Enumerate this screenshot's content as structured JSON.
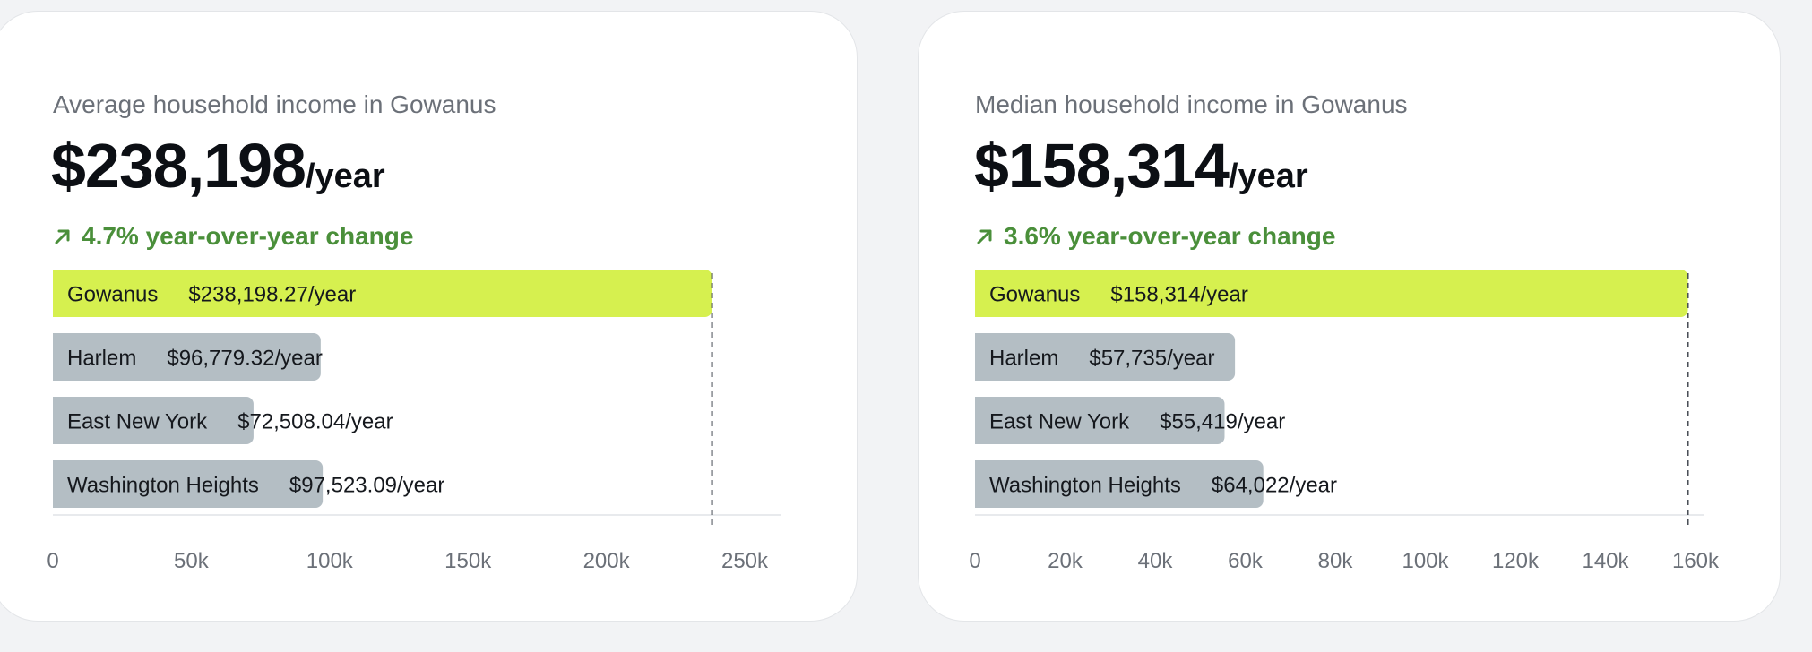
{
  "colors": {
    "highlight_bar": "#d6f04f",
    "other_bar": "#b4bec4",
    "change_positive": "#4a8f3a",
    "axis_text": "#6b7078"
  },
  "cards": [
    {
      "subtitle": "Average household income in Gowanus",
      "value": "$238,198",
      "unit": "/year",
      "change_icon": "arrow-up-right-icon",
      "change_text": "4.7% year-over-year change"
    },
    {
      "subtitle": "Median household income in Gowanus",
      "value": "$158,314",
      "unit": "/year",
      "change_icon": "arrow-up-right-icon",
      "change_text": "3.6% year-over-year change"
    }
  ],
  "chart_data": [
    {
      "type": "bar",
      "orientation": "horizontal",
      "categories": [
        "Gowanus",
        "Harlem",
        "East New York",
        "Washington Heights"
      ],
      "values": [
        238198.27,
        96779.32,
        72508.04,
        97523.09
      ],
      "value_labels": [
        "$238,198.27/year",
        "$96,779.32/year",
        "$72,508.04/year",
        "$97,523.09/year"
      ],
      "highlight": "Gowanus",
      "reference_line": 238198.27,
      "ticks": [
        0,
        50000,
        100000,
        150000,
        200000,
        250000
      ],
      "tick_labels": [
        "0",
        "50k",
        "100k",
        "150k",
        "200k",
        "250k"
      ],
      "xlim": [
        0,
        250000
      ],
      "grid": false
    },
    {
      "type": "bar",
      "orientation": "horizontal",
      "categories": [
        "Gowanus",
        "Harlem",
        "East New York",
        "Washington Heights"
      ],
      "values": [
        158314,
        57735,
        55419,
        64022
      ],
      "value_labels": [
        "$158,314/year",
        "$57,735/year",
        "$55,419/year",
        "$64,022/year"
      ],
      "highlight": "Gowanus",
      "reference_line": 158314,
      "ticks": [
        0,
        20000,
        40000,
        60000,
        80000,
        100000,
        120000,
        140000,
        160000
      ],
      "tick_labels": [
        "0",
        "20k",
        "40k",
        "60k",
        "80k",
        "100k",
        "120k",
        "140k",
        "160k"
      ],
      "xlim": [
        0,
        160000
      ],
      "grid": false
    }
  ]
}
